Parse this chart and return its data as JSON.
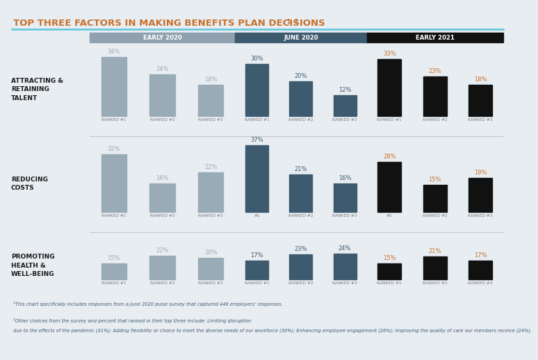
{
  "title": "TOP THREE FACTORS IN MAKING BENEFITS PLAN DECISIONS",
  "title_superscript": "1, 2",
  "background_color": "#e8edf2",
  "periods": [
    "EARLY 2020",
    "JUNE 2020",
    "EARLY 2021"
  ],
  "period_colors": [
    "#8fa0ae",
    "#3d5a6e",
    "#111111"
  ],
  "categories": [
    "ATTRACTING &\nRETAINING\nTALENT",
    "REDUCING\nCOSTS",
    "PROMOTING\nHEALTH &\nWELL-BEING"
  ],
  "data": {
    "ATTRACTING &\nRETAINING\nTALENT": {
      "EARLY 2020": [
        34,
        24,
        18
      ],
      "JUNE 2020": [
        30,
        20,
        12
      ],
      "EARLY 2021": [
        33,
        23,
        18
      ]
    },
    "REDUCING\nCOSTS": {
      "EARLY 2020": [
        32,
        16,
        22
      ],
      "JUNE 2020": [
        37,
        21,
        16
      ],
      "EARLY 2021": [
        28,
        15,
        19
      ]
    },
    "PROMOTING\nHEALTH &\nWELL-BEING": {
      "EARLY 2020": [
        15,
        22,
        20
      ],
      "JUNE 2020": [
        17,
        23,
        24
      ],
      "EARLY 2021": [
        15,
        21,
        17
      ]
    }
  },
  "rank_labels": {
    "ATTRACTING &\nRETAINING\nTALENT": {
      "EARLY 2020": [
        "RANKED #1",
        "RANKED #2",
        "RANKED #3"
      ],
      "JUNE 2020": [
        "RANKED #1",
        "RANKED #2",
        "RANKED #3"
      ],
      "EARLY 2021": [
        "RANKED #1",
        "RANKED #2",
        "RANKED #3"
      ]
    },
    "REDUCING\nCOSTS": {
      "EARLY 2020": [
        "RANKED #1",
        "RANKED #2",
        "RANKED #3"
      ],
      "JUNE 2020": [
        "#1",
        "RANKED #2",
        "RANKED #3"
      ],
      "EARLY 2021": [
        "#1",
        "RANKED #2",
        "RANKED #3"
      ]
    },
    "PROMOTING\nHEALTH &\nWELL-BEING": {
      "EARLY 2020": [
        "RANKED #1",
        "RANKED #2",
        "RANKED #3"
      ],
      "JUNE 2020": [
        "RANKED #1",
        "RANKED #2",
        "RANKED #3"
      ],
      "EARLY 2021": [
        "RANKED #1",
        "RANKED #2",
        "RANKED #3"
      ]
    }
  },
  "bar_colors": {
    "EARLY 2020": "#9aabb8",
    "JUNE 2020": "#3d5a6e",
    "EARLY 2021": "#111111"
  },
  "value_colors": {
    "EARLY 2020": "#9aabb8",
    "JUNE 2020": "#3d5a6e",
    "EARLY 2021": "#c8702a"
  },
  "footnote1": "¹This chart specifically includes responses from a June 2020 pulse survey that captured 446 employers’ responses.",
  "footnote2": "²Other choices from the survey and percent that ranked in their top three include: Limiting disruption due to the effects of the pandemic (31%); Adding flexibility or choice to meet the diverse needs of our workforce (30%); Enhancing employee engagement (26%); Improving the quality of care our members receive (24%).",
  "footnote_color": "#3d5a6e",
  "ylabel_max": 40,
  "title_color": "#c8702a",
  "separator_color": "#c8c8c8",
  "title_line_color": "#5bc4d9",
  "rank_label_color": "#777777"
}
